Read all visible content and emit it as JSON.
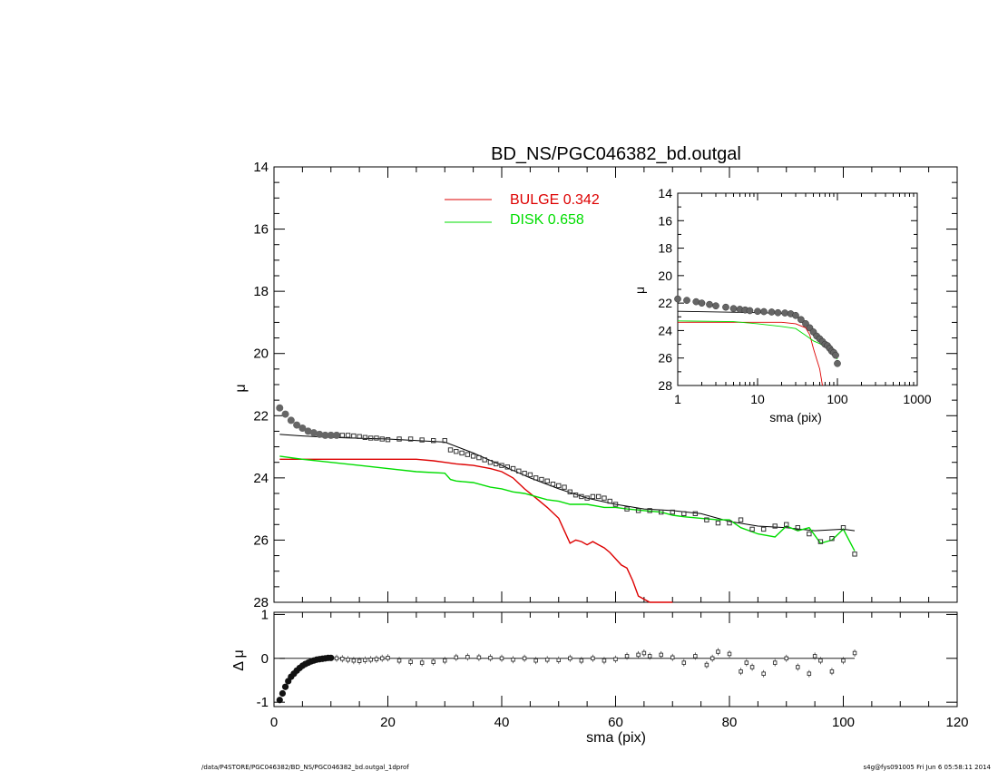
{
  "chart_data": [
    {
      "type": "line",
      "panel": "main",
      "title": "BD_NS/PGC046382_bd.outgal",
      "ylabel": "μ",
      "xlim": [
        0,
        120
      ],
      "ylim": [
        28,
        14
      ],
      "y_ticks": [
        14,
        16,
        18,
        20,
        22,
        24,
        26,
        28
      ],
      "y_inverted": true,
      "legend": {
        "position": "top-center",
        "entries": [
          {
            "label": "BULGE  0.342",
            "color": "#dd0000"
          },
          {
            "label": "DISK  0.658",
            "color": "#00dd00"
          }
        ]
      },
      "series": [
        {
          "name": "data",
          "kind": "points",
          "x": [
            1,
            2,
            3,
            4,
            5,
            6,
            7,
            8,
            9,
            10,
            11,
            12,
            13,
            14,
            15,
            16,
            17,
            18,
            19,
            20,
            22,
            24,
            26,
            28,
            30,
            31,
            32,
            33,
            34,
            35,
            36,
            37,
            38,
            39,
            40,
            41,
            42,
            43,
            44,
            45,
            46,
            47,
            48,
            49,
            50,
            51,
            52,
            53,
            54,
            55,
            56,
            57,
            58,
            59,
            60,
            62,
            64,
            66,
            68,
            70,
            72,
            74,
            76,
            78,
            80,
            82,
            84,
            86,
            88,
            90,
            92,
            94,
            96,
            98,
            100,
            102
          ],
          "y": [
            21.75,
            21.95,
            22.15,
            22.3,
            22.4,
            22.5,
            22.55,
            22.6,
            22.63,
            22.63,
            22.63,
            22.63,
            22.63,
            22.65,
            22.67,
            22.7,
            22.72,
            22.72,
            22.75,
            22.77,
            22.75,
            22.75,
            22.78,
            22.8,
            22.8,
            23.1,
            23.15,
            23.2,
            23.25,
            23.3,
            23.35,
            23.42,
            23.5,
            23.55,
            23.6,
            23.65,
            23.7,
            23.78,
            23.85,
            23.9,
            24.0,
            24.05,
            24.1,
            24.2,
            24.25,
            24.3,
            24.45,
            24.55,
            24.6,
            24.65,
            24.6,
            24.6,
            24.65,
            24.75,
            24.85,
            25.0,
            25.05,
            25.05,
            25.1,
            25.1,
            25.15,
            25.15,
            25.35,
            25.45,
            25.45,
            25.35,
            25.65,
            25.65,
            25.55,
            25.5,
            25.6,
            25.8,
            26.05,
            25.95,
            25.6,
            26.45
          ]
        },
        {
          "name": "model",
          "kind": "line",
          "x": [
            1,
            5,
            10,
            20,
            30,
            35,
            40,
            45,
            50,
            55,
            60,
            65,
            70,
            75,
            80,
            85,
            90,
            95,
            100,
            102
          ],
          "y": [
            22.6,
            22.65,
            22.7,
            22.75,
            22.85,
            23.2,
            23.6,
            24.0,
            24.35,
            24.65,
            24.85,
            25.0,
            25.05,
            25.15,
            25.4,
            25.55,
            25.6,
            25.7,
            25.65,
            25.7
          ]
        },
        {
          "name": "BULGE",
          "kind": "line",
          "x": [
            1,
            5,
            10,
            15,
            20,
            25,
            28,
            30,
            32,
            35,
            38,
            40,
            42,
            44,
            46,
            48,
            50,
            51,
            52,
            53,
            54,
            55,
            56,
            57,
            58,
            59,
            60,
            61,
            62,
            63,
            64,
            65,
            66,
            68,
            69,
            70
          ],
          "y": [
            23.4,
            23.4,
            23.4,
            23.4,
            23.4,
            23.4,
            23.45,
            23.5,
            23.55,
            23.6,
            23.7,
            23.8,
            24.0,
            24.35,
            24.65,
            24.95,
            25.3,
            25.7,
            26.1,
            26.0,
            26.05,
            26.15,
            26.05,
            26.15,
            26.25,
            26.4,
            26.6,
            26.8,
            26.9,
            27.3,
            27.8,
            27.9,
            28.05,
            28.0,
            28.1,
            28.1
          ]
        },
        {
          "name": "DISK",
          "kind": "line",
          "x": [
            1,
            5,
            10,
            15,
            20,
            25,
            30,
            31,
            32,
            35,
            38,
            40,
            42,
            44,
            46,
            48,
            50,
            52,
            55,
            58,
            60,
            62,
            65,
            68,
            70,
            72,
            75,
            78,
            80,
            82,
            85,
            88,
            90,
            92,
            94,
            96,
            98,
            100,
            102
          ],
          "y": [
            23.3,
            23.4,
            23.5,
            23.6,
            23.7,
            23.8,
            23.85,
            24.05,
            24.1,
            24.15,
            24.3,
            24.35,
            24.45,
            24.5,
            24.6,
            24.7,
            24.75,
            24.85,
            24.85,
            24.95,
            24.95,
            25.0,
            25.05,
            25.1,
            25.2,
            25.25,
            25.3,
            25.35,
            25.35,
            25.6,
            25.8,
            25.9,
            25.55,
            25.7,
            25.6,
            26.1,
            26.0,
            25.65,
            26.35
          ]
        }
      ]
    },
    {
      "type": "line",
      "panel": "inset",
      "xlabel": "sma (pix)",
      "ylabel": "μ",
      "x_scale": "log",
      "xlim": [
        1,
        1000
      ],
      "x_ticks": [
        1,
        10,
        100,
        1000
      ],
      "ylim": [
        28,
        14
      ],
      "y_ticks": [
        14,
        16,
        18,
        20,
        22,
        24,
        26,
        28
      ],
      "series": [
        {
          "name": "data",
          "kind": "points",
          "x": [
            1,
            1.3,
            1.7,
            2,
            2.5,
            3,
            4,
            5,
            6,
            7,
            8,
            10,
            12,
            15,
            18,
            22,
            26,
            30,
            35,
            40,
            45,
            50,
            55,
            60,
            65,
            70,
            75,
            80,
            85,
            90,
            95,
            100
          ],
          "y": [
            21.7,
            21.8,
            21.9,
            22.0,
            22.1,
            22.2,
            22.3,
            22.4,
            22.45,
            22.5,
            22.55,
            22.6,
            22.62,
            22.65,
            22.7,
            22.72,
            22.78,
            22.9,
            23.2,
            23.5,
            23.8,
            24.1,
            24.4,
            24.6,
            24.8,
            25.0,
            25.1,
            25.3,
            25.5,
            25.6,
            25.8,
            26.4
          ]
        },
        {
          "name": "model",
          "kind": "line",
          "x": [
            1,
            10,
            20,
            30,
            40,
            50,
            60,
            70,
            80,
            90,
            100
          ],
          "y": [
            22.6,
            22.7,
            22.75,
            22.85,
            23.6,
            24.35,
            24.85,
            25.05,
            25.4,
            25.6,
            25.7
          ]
        },
        {
          "name": "BULGE",
          "kind": "line",
          "x": [
            1,
            5,
            10,
            20,
            30,
            40,
            45,
            50,
            55,
            60,
            65
          ],
          "y": [
            23.4,
            23.4,
            23.4,
            23.4,
            23.5,
            23.8,
            24.3,
            25.3,
            26.1,
            26.8,
            28.2
          ]
        },
        {
          "name": "DISK",
          "kind": "line",
          "x": [
            1,
            5,
            10,
            20,
            30,
            40,
            50,
            60,
            70,
            80,
            90,
            100
          ],
          "y": [
            23.3,
            23.35,
            23.5,
            23.7,
            23.85,
            24.35,
            24.75,
            24.95,
            25.2,
            25.35,
            25.6,
            26.1
          ]
        }
      ]
    },
    {
      "type": "scatter",
      "panel": "residual",
      "xlabel": "sma (pix)",
      "ylabel": "Δ μ",
      "xlim": [
        0,
        120
      ],
      "x_ticks": [
        0,
        20,
        40,
        60,
        80,
        100,
        120
      ],
      "ylim": [
        -1.1,
        1.05
      ],
      "y_ticks": [
        1,
        0,
        -1
      ],
      "series": [
        {
          "name": "residual",
          "kind": "points",
          "x": [
            1,
            1.5,
            2,
            2.5,
            3,
            3.5,
            4,
            4.5,
            5,
            5.5,
            6,
            6.5,
            7,
            7.5,
            8,
            8.5,
            9,
            9.5,
            10,
            11,
            12,
            13,
            14,
            15,
            16,
            17,
            18,
            19,
            20,
            22,
            24,
            26,
            28,
            30,
            32,
            34,
            36,
            38,
            40,
            42,
            44,
            46,
            48,
            50,
            52,
            54,
            56,
            58,
            60,
            62,
            64,
            65,
            66,
            68,
            70,
            72,
            74,
            76,
            77,
            78,
            80,
            82,
            83,
            84,
            86,
            88,
            90,
            92,
            94,
            95,
            96,
            98,
            100,
            102
          ],
          "y": [
            -0.95,
            -0.8,
            -0.65,
            -0.52,
            -0.42,
            -0.35,
            -0.28,
            -0.22,
            -0.17,
            -0.13,
            -0.1,
            -0.07,
            -0.05,
            -0.03,
            -0.02,
            -0.01,
            0.0,
            0.01,
            0.01,
            0.0,
            -0.01,
            -0.03,
            -0.05,
            -0.06,
            -0.04,
            -0.03,
            -0.02,
            0.0,
            0.01,
            -0.05,
            -0.08,
            -0.1,
            -0.08,
            -0.05,
            0.02,
            0.03,
            0.02,
            0.01,
            0.0,
            -0.03,
            0.0,
            -0.05,
            -0.03,
            -0.04,
            0.0,
            -0.05,
            0.0,
            -0.05,
            -0.02,
            0.05,
            0.08,
            0.12,
            0.05,
            0.08,
            0.02,
            -0.1,
            0.05,
            -0.15,
            0.0,
            0.15,
            0.1,
            -0.3,
            -0.1,
            -0.2,
            -0.35,
            -0.1,
            0.0,
            -0.2,
            -0.35,
            0.05,
            -0.05,
            -0.3,
            -0.05,
            0.12
          ]
        },
        {
          "name": "zero",
          "kind": "line",
          "x": [
            1,
            102
          ],
          "y": [
            0,
            0
          ]
        }
      ]
    }
  ],
  "axis_tick_labels": {
    "main_y": [
      "14",
      "16",
      "18",
      "20",
      "22",
      "24",
      "26",
      "28"
    ],
    "resid_y": [
      "1",
      "0",
      "-1"
    ],
    "x": [
      "0",
      "20",
      "40",
      "60",
      "80",
      "100",
      "120"
    ],
    "inset_y": [
      "14",
      "16",
      "18",
      "20",
      "22",
      "24",
      "26",
      "28"
    ],
    "inset_x": [
      "1",
      "10",
      "100",
      "1000"
    ]
  },
  "colors": {
    "bulge": "#dd0000",
    "disk": "#00dd00",
    "model": "#000000",
    "data": "#555555"
  },
  "footer": {
    "left": "/data/P4STORE/PGC046382/BD_NS/PGC046382_bd.outgal_1dprof",
    "right": "s4g@fys091005  Fri Jun  6 05:58:11 2014"
  }
}
